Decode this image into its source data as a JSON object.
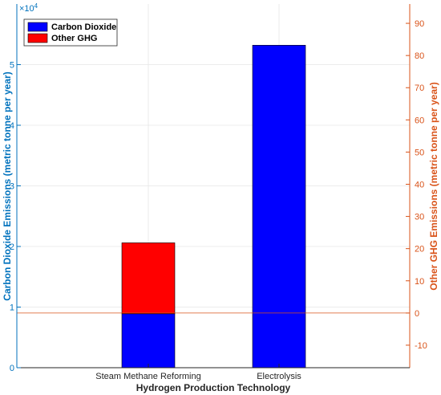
{
  "chart_data": {
    "type": "bar",
    "stacked": true,
    "categories": [
      "Steam Methane Reforming",
      "Electrolysis"
    ],
    "xlabel": "Hydrogen Production Technology",
    "ylabel_left": "Carbon Dioxide Emissions (metric tonne per year)",
    "ylabel_right": "Other GHG Emissions (metric tonne per year)",
    "left_axis_exponent": "×10",
    "left_axis_exponent_power": "4",
    "ylim_left": [
      0,
      60000
    ],
    "ylim_right": [
      -17,
      96
    ],
    "yticks_left": [
      0,
      10000,
      20000,
      30000,
      40000,
      50000
    ],
    "yticks_left_labels": [
      "0",
      "1",
      "2",
      "3",
      "4",
      "5"
    ],
    "yticks_right": [
      -10,
      0,
      10,
      20,
      30,
      40,
      50,
      60,
      70,
      80,
      90
    ],
    "yticks_right_labels": [
      "-10",
      "0",
      "10",
      "20",
      "30",
      "40",
      "50",
      "60",
      "70",
      "80",
      "90"
    ],
    "grid": true,
    "legend": {
      "position": "top-left"
    },
    "series": [
      {
        "name": "Carbon Dioxide",
        "color": "#0000FF",
        "axis": "left",
        "values": [
          8900,
          53200
        ]
      },
      {
        "name": "Other GHG",
        "color": "#FF0000",
        "axis": "left",
        "values": [
          11700,
          0
        ]
      }
    ],
    "zero_line_right_axis": true
  }
}
